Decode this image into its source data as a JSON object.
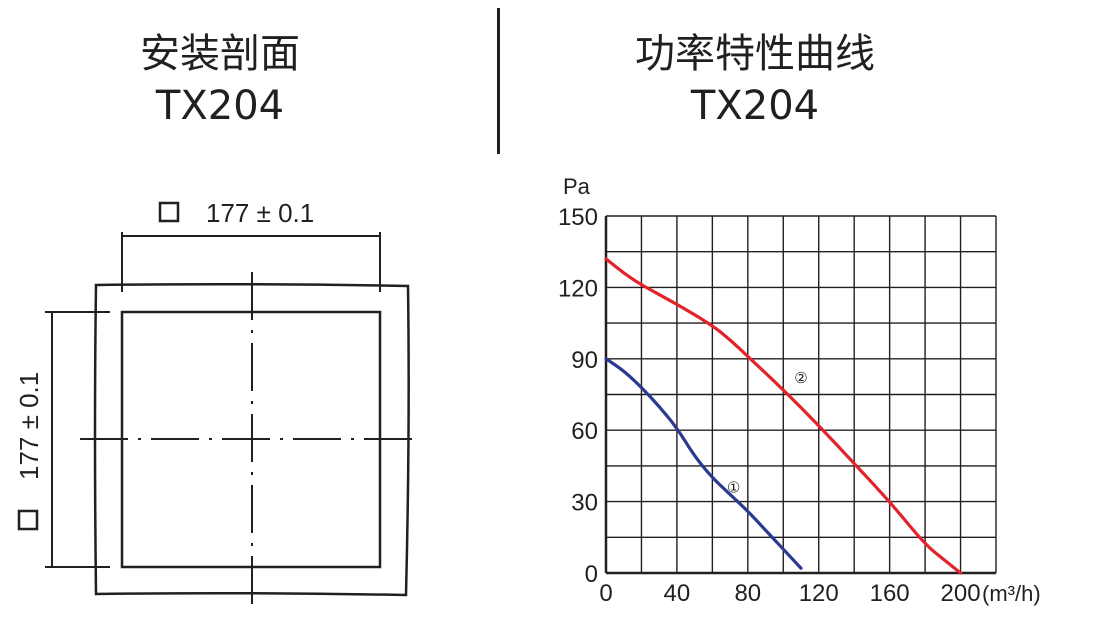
{
  "section_left": {
    "title": "安装剖面",
    "model": "TX204"
  },
  "section_right": {
    "title": "功率特性曲线",
    "model": "TX204"
  },
  "drawing": {
    "width_dimension": "177 ± 0.1",
    "height_dimension": "177 ± 0.1",
    "square_symbol": "square-outline-icon"
  },
  "chart_data": {
    "type": "line",
    "ylabel": "Pa",
    "xunit": "(m³/h)",
    "xlim": [
      0,
      220
    ],
    "ylim": [
      0,
      150
    ],
    "xticks": [
      0,
      40,
      80,
      120,
      160,
      200
    ],
    "yticks": [
      0,
      30,
      60,
      90,
      120,
      150
    ],
    "grid": true,
    "grid_x_step": 20,
    "grid_y_step": 15,
    "series": [
      {
        "name": "①",
        "color": "#2b3990",
        "x": [
          0,
          10,
          20,
          30,
          40,
          50,
          60,
          70,
          80,
          90,
          100,
          110
        ],
        "y": [
          90,
          85,
          78,
          70,
          61,
          49,
          40,
          33,
          26,
          18,
          10,
          2
        ]
      },
      {
        "name": "②",
        "color": "#e2232a",
        "x": [
          0,
          10,
          20,
          40,
          60,
          70,
          80,
          100,
          120,
          140,
          160,
          180,
          190,
          200
        ],
        "y": [
          132,
          126,
          121,
          113,
          104,
          98,
          91,
          77,
          62,
          46,
          30,
          12,
          6,
          0
        ]
      }
    ],
    "annotations": [
      {
        "text": "①",
        "x": 72,
        "y": 36
      },
      {
        "text": "②",
        "x": 110,
        "y": 82
      }
    ]
  }
}
